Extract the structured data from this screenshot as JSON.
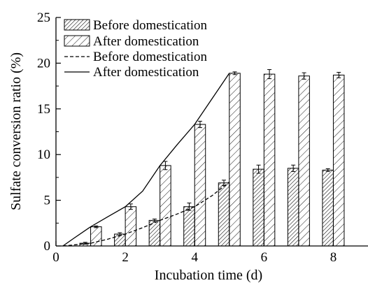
{
  "chart_data": {
    "type": "bar",
    "xlabel": "Incubation time (d)",
    "ylabel": "Sulfate conversion ratio (%)",
    "xlim": [
      0,
      9
    ],
    "ylim": [
      0,
      25
    ],
    "xticks": [
      0,
      2,
      4,
      6,
      8
    ],
    "yticks": [
      0,
      5,
      10,
      15,
      20,
      25
    ],
    "grid": false,
    "legend_position": "top-left",
    "colors": {
      "ink": "#000000",
      "bar_fill": "#ffffff"
    },
    "bar_series": [
      {
        "name": "Before domestication",
        "pattern": "dense-hatch",
        "x": [
          1,
          2,
          3,
          4,
          5,
          6,
          7,
          8
        ],
        "values": [
          0.3,
          1.3,
          2.8,
          4.3,
          6.9,
          8.4,
          8.5,
          8.3
        ],
        "errors": [
          0.1,
          0.15,
          0.15,
          0.4,
          0.3,
          0.45,
          0.35,
          0.15
        ]
      },
      {
        "name": "After domestication",
        "pattern": "sparse-hatch",
        "x": [
          1,
          2,
          3,
          4,
          5,
          6,
          7,
          8
        ],
        "values": [
          2.1,
          4.3,
          8.8,
          13.3,
          18.9,
          18.8,
          18.6,
          18.7
        ],
        "errors": [
          0.1,
          0.3,
          0.45,
          0.35,
          0.15,
          0.5,
          0.35,
          0.3
        ]
      }
    ],
    "line_series": [
      {
        "name": "Before domestication",
        "style": "dashed",
        "x": [
          0.2,
          1,
          1.5,
          2,
          2.5,
          3,
          3.5,
          4,
          4.5,
          5
        ],
        "values": [
          0,
          0.3,
          0.75,
          1.3,
          2.0,
          2.8,
          3.5,
          4.3,
          5.5,
          7.0
        ]
      },
      {
        "name": "After domestication",
        "style": "solid",
        "x": [
          0.2,
          0.5,
          1,
          1.5,
          2,
          2.5,
          3,
          3.5,
          4,
          4.5,
          5
        ],
        "values": [
          0,
          0.8,
          2.1,
          3.2,
          4.3,
          6.0,
          8.8,
          11.1,
          13.3,
          16.1,
          18.9
        ]
      }
    ]
  }
}
